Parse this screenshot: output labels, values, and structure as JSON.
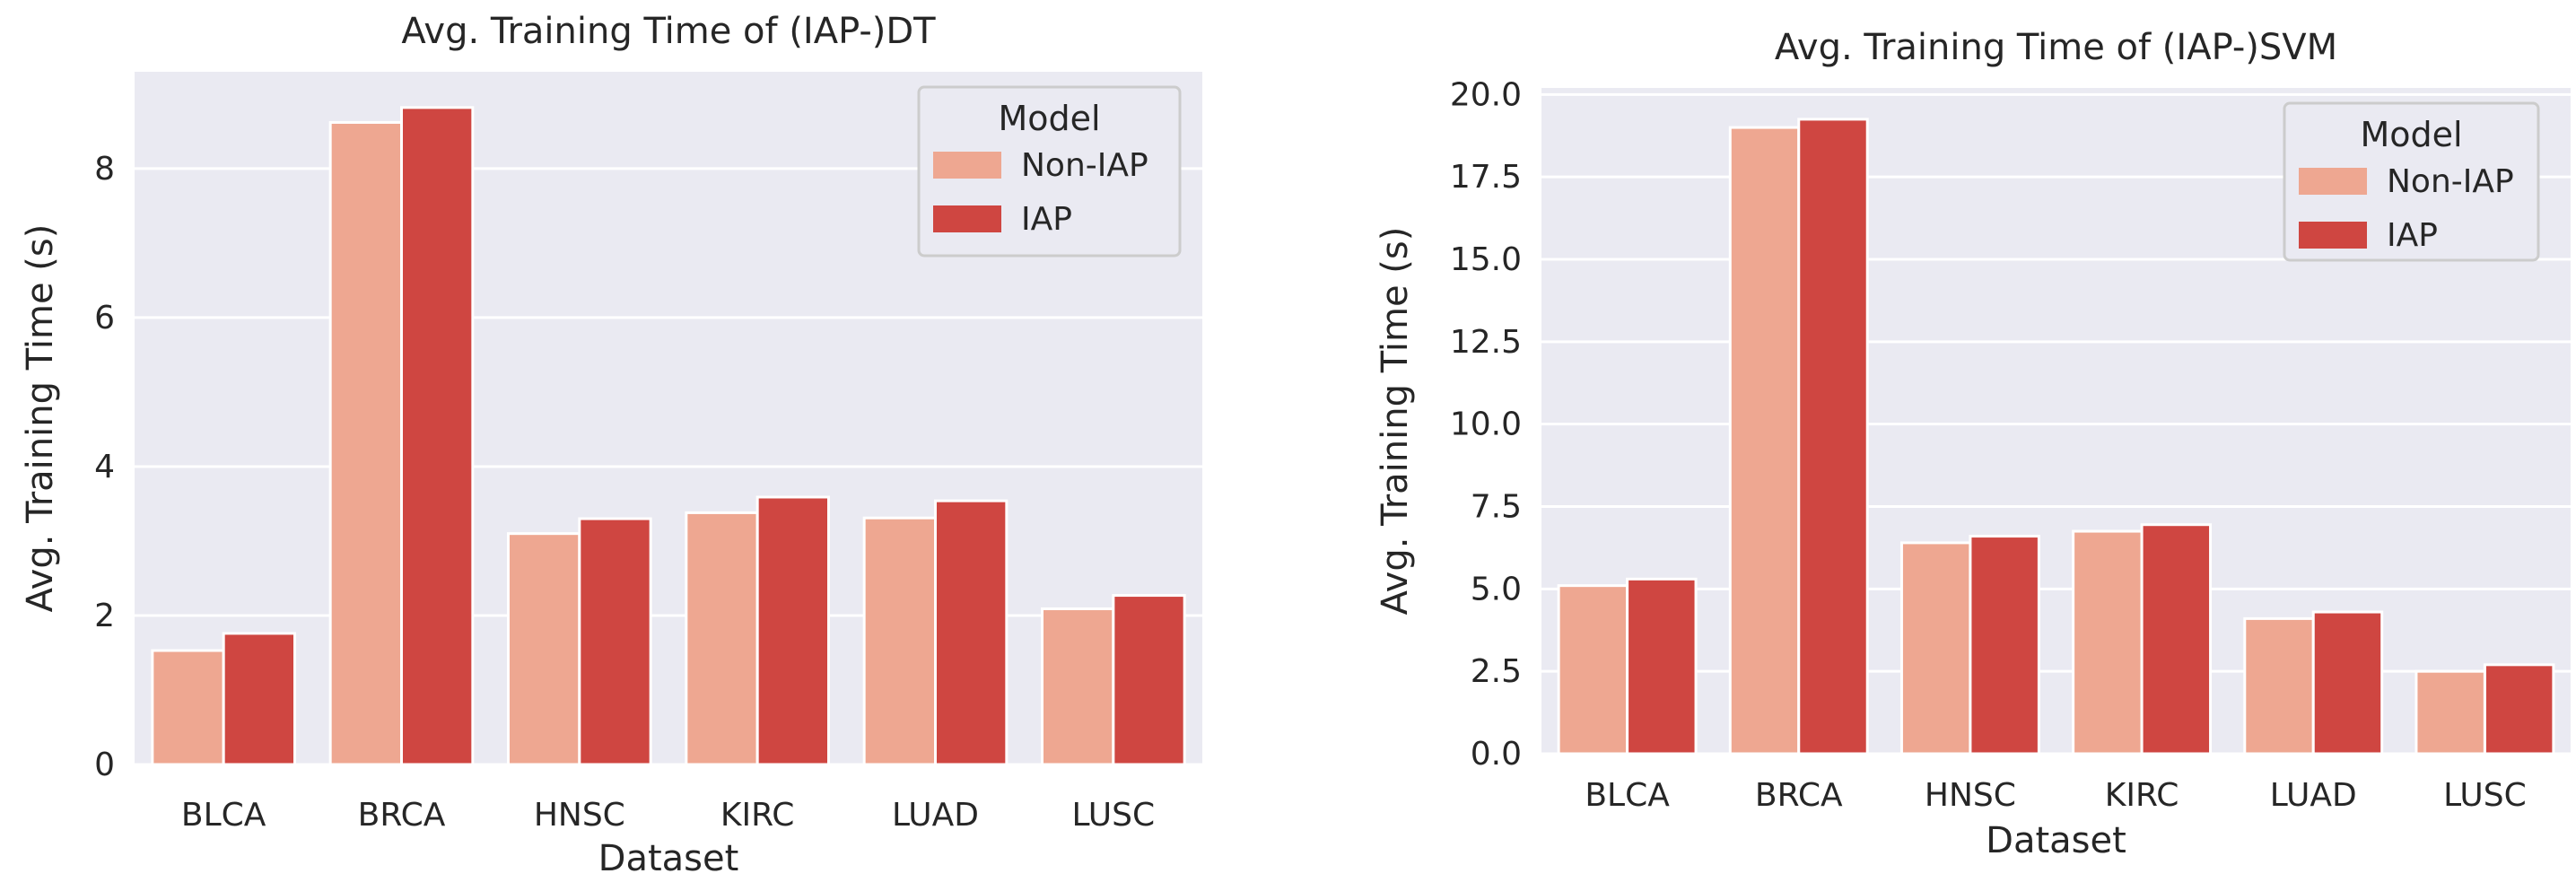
{
  "chart_data": [
    {
      "type": "bar",
      "title": "Avg. Training Time of (IAP-)DT",
      "xlabel": "Dataset",
      "ylabel": "Avg. Training Time (s)",
      "categories": [
        "BLCA",
        "BRCA",
        "HNSC",
        "KIRC",
        "LUAD",
        "LUSC"
      ],
      "ylim": [
        0,
        9.3
      ],
      "yticks": [
        0,
        2,
        4,
        6,
        8
      ],
      "ytick_labels": [
        "0",
        "2",
        "4",
        "6",
        "8"
      ],
      "grid": true,
      "legend": {
        "title": "Model",
        "position": "top-right",
        "entries": [
          "Non-IAP",
          "IAP"
        ]
      },
      "series": [
        {
          "name": "Non-IAP",
          "color": "#eea791",
          "values": [
            1.53,
            8.62,
            3.1,
            3.38,
            3.31,
            2.09
          ]
        },
        {
          "name": "IAP",
          "color": "#cf4641",
          "values": [
            1.76,
            8.82,
            3.3,
            3.59,
            3.54,
            2.27
          ]
        }
      ]
    },
    {
      "type": "bar",
      "title": "Avg. Training Time of (IAP-)SVM",
      "xlabel": "Dataset",
      "ylabel": "Avg. Training Time (s)",
      "categories": [
        "BLCA",
        "BRCA",
        "HNSC",
        "KIRC",
        "LUAD",
        "LUSC"
      ],
      "ylim": [
        0,
        20.2
      ],
      "yticks": [
        0,
        2.5,
        5,
        7.5,
        10,
        12.5,
        15,
        17.5,
        20
      ],
      "ytick_labels": [
        "0.0",
        "2.5",
        "5.0",
        "7.5",
        "10.0",
        "12.5",
        "15.0",
        "17.5",
        "20.0"
      ],
      "grid": true,
      "legend": {
        "title": "Model",
        "position": "top-right",
        "entries": [
          "Non-IAP",
          "IAP"
        ]
      },
      "series": [
        {
          "name": "Non-IAP",
          "color": "#eea791",
          "values": [
            5.1,
            19.0,
            6.4,
            6.75,
            4.1,
            2.5
          ]
        },
        {
          "name": "IAP",
          "color": "#cf4641",
          "values": [
            5.3,
            19.25,
            6.6,
            6.95,
            4.3,
            2.7
          ]
        }
      ]
    }
  ]
}
